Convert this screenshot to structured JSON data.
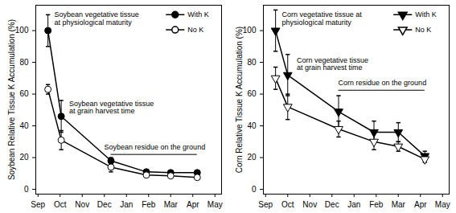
{
  "chart_data": [
    {
      "type": "line",
      "y_label": "Soybean Relative Tissue K Accumulation (%)",
      "x": [
        0.45,
        1.05,
        3.3,
        4.9,
        6.0,
        7.2
      ],
      "xlim": [
        -0.1,
        8.3
      ],
      "xticks": [
        {
          "value": 0,
          "label": "Sep"
        },
        {
          "value": 1,
          "label": "Oct"
        },
        {
          "value": 2,
          "label": "Nov"
        },
        {
          "value": 3,
          "label": "Dec"
        },
        {
          "value": 4,
          "label": "Jan"
        },
        {
          "value": 5,
          "label": "Feb"
        },
        {
          "value": 6,
          "label": "Mar"
        },
        {
          "value": 7,
          "label": "Apr"
        },
        {
          "value": 8,
          "label": "May"
        }
      ],
      "ylim": [
        -3,
        116
      ],
      "yticks": [
        0,
        20,
        40,
        60,
        80,
        100
      ],
      "legend": "upper right",
      "series": [
        {
          "name": "With K",
          "color": "#000000",
          "marker": "filled-circle",
          "values": [
            100,
            46,
            18,
            11,
            10.5,
            10.5
          ],
          "errors": [
            10,
            10,
            2,
            1,
            1,
            1
          ]
        },
        {
          "name": "No K",
          "color": "#000000",
          "marker": "open-circle",
          "values": [
            63,
            31,
            14,
            9,
            8.5,
            7.5
          ],
          "errors": [
            3,
            6,
            3,
            1,
            1,
            1
          ]
        }
      ],
      "annotations": [
        "Soybean vegetative tissue\nat physiological maturity",
        "Soybean vegetative tissue\nat grain harvest time",
        "Soybean residue on the ground"
      ]
    },
    {
      "type": "line",
      "y_label": "Corn Relative Tissue K Accumulation (%)",
      "x": [
        0.45,
        1.0,
        3.3,
        4.9,
        6.0,
        7.2
      ],
      "xlim": [
        -0.1,
        8.3
      ],
      "xticks": [
        {
          "value": 0,
          "label": "Sep"
        },
        {
          "value": 1,
          "label": "Oct"
        },
        {
          "value": 2,
          "label": "Nov"
        },
        {
          "value": 3,
          "label": "Dec"
        },
        {
          "value": 4,
          "label": "Jan"
        },
        {
          "value": 5,
          "label": "Feb"
        },
        {
          "value": 6,
          "label": "Mar"
        },
        {
          "value": 7,
          "label": "Apr"
        },
        {
          "value": 8,
          "label": "May"
        }
      ],
      "ylim": [
        -3,
        116
      ],
      "yticks": [
        0,
        20,
        40,
        60,
        80,
        100
      ],
      "legend": "upper right",
      "series": [
        {
          "name": "With K",
          "color": "#000000",
          "marker": "filled-triangle-down",
          "values": [
            100,
            72,
            49,
            36,
            36,
            21
          ],
          "errors": [
            13,
            13,
            10,
            7,
            6,
            3
          ]
        },
        {
          "name": "No K",
          "color": "#000000",
          "marker": "open-triangle-down",
          "values": [
            70,
            52,
            38,
            30,
            27,
            19
          ],
          "errors": [
            7,
            8,
            5,
            5,
            3,
            2
          ]
        }
      ],
      "annotations": [
        "Corn vegetative tissue at\nphysiological maturity",
        "Corn vegetative tissue\nat grain harvest time",
        "Corn residue on the ground"
      ]
    }
  ]
}
